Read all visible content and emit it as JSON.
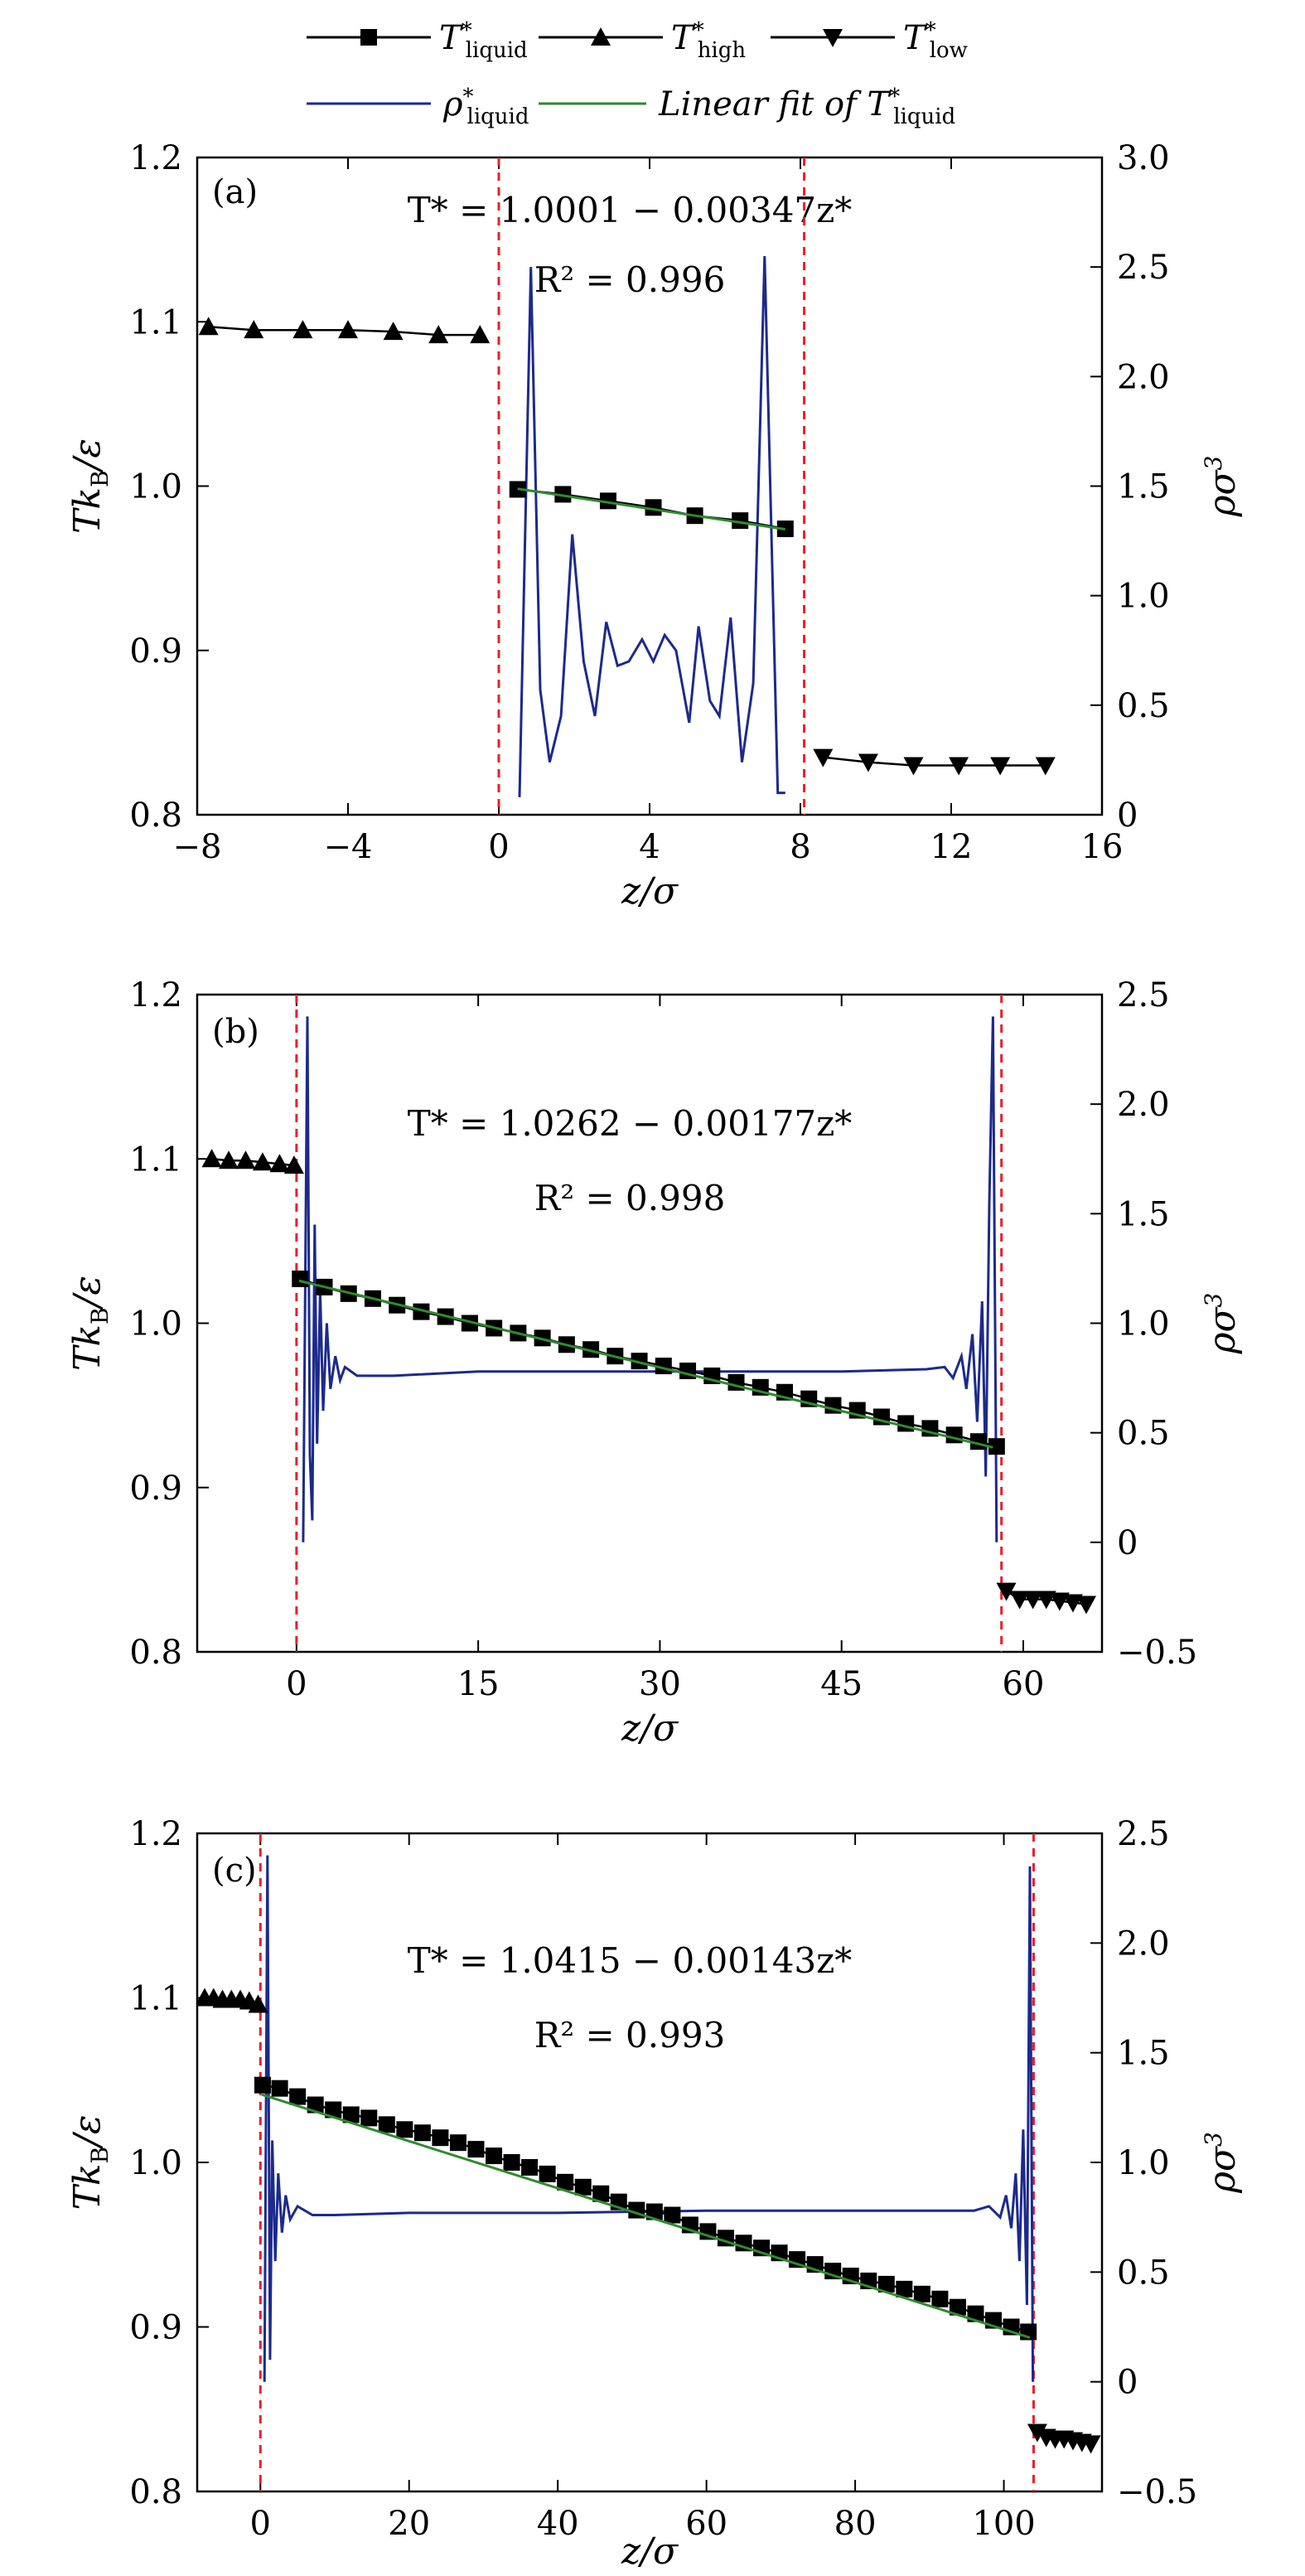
{
  "legend": {
    "items": [
      {
        "label": "T*liquid",
        "kind": "line-square",
        "color": "#000000"
      },
      {
        "label": "T*high",
        "kind": "line-triangle-up",
        "color": "#000000"
      },
      {
        "label": "T*low",
        "kind": "line-triangle-down",
        "color": "#000000"
      },
      {
        "label": "ρ*liquid",
        "kind": "line",
        "color": "#1c2a8c"
      },
      {
        "label": "Linear fit of T*liquid",
        "kind": "line",
        "color": "#2e8b2e"
      }
    ]
  },
  "colors": {
    "temperature": "#000000",
    "density": "#1c2a8c",
    "fit": "#2e8b2e",
    "interface": "#e8202a"
  },
  "chart_data": [
    {
      "type": "line",
      "panel": "(a)",
      "xlabel": "z/σ",
      "ylabel": "Tk_B/ε",
      "y2label": "ρσ³",
      "xlim": [
        -8,
        16
      ],
      "xticks": [
        -8,
        -4,
        0,
        4,
        8,
        12,
        16
      ],
      "xtick_labels": [
        "−8",
        "−4",
        "0",
        "4",
        "8",
        "12",
        "16"
      ],
      "ylim": [
        0.8,
        1.2
      ],
      "yticks": [
        0.8,
        0.9,
        1.0,
        1.1,
        1.2
      ],
      "ytick_labels": [
        "0.8",
        "0.9",
        "1.0",
        "1.1",
        "1.2"
      ],
      "y2lim": [
        0,
        3.0
      ],
      "y2ticks": [
        0,
        0.5,
        1.0,
        1.5,
        2.0,
        2.5,
        3.0
      ],
      "y2tick_labels": [
        "0",
        "0.5",
        "1.0",
        "1.5",
        "2.0",
        "2.5",
        "3.0"
      ],
      "annotation_eq": "T* = 1.0001 − 0.00347z*",
      "annotation_r2": "R² = 0.996",
      "interfaces": [
        0,
        8.1
      ],
      "fit": {
        "intercept": 1.0001,
        "slope": -0.00347,
        "x_range": [
          0.5,
          7.6
        ]
      },
      "series": [
        {
          "name": "T*high",
          "marker": "triangle-up",
          "x": [
            -7.7,
            -6.5,
            -5.2,
            -4.0,
            -2.8,
            -1.6,
            -0.5
          ],
          "y": [
            1.097,
            1.095,
            1.095,
            1.095,
            1.094,
            1.092,
            1.092
          ]
        },
        {
          "name": "T*liquid",
          "marker": "square",
          "x": [
            0.5,
            1.7,
            2.9,
            4.1,
            5.2,
            6.4,
            7.6
          ],
          "y": [
            0.998,
            0.995,
            0.991,
            0.987,
            0.982,
            0.979,
            0.974
          ]
        },
        {
          "name": "T*low",
          "marker": "triangle-down",
          "x": [
            8.6,
            9.8,
            11.0,
            12.2,
            13.3,
            14.5
          ],
          "y": [
            0.835,
            0.832,
            0.83,
            0.83,
            0.83,
            0.83
          ]
        },
        {
          "name": "ρ*liquid",
          "axis": "right",
          "x": [
            0.55,
            0.85,
            1.1,
            1.35,
            1.65,
            1.95,
            2.25,
            2.55,
            2.85,
            3.15,
            3.45,
            3.8,
            4.1,
            4.4,
            4.7,
            5.05,
            5.3,
            5.6,
            5.85,
            6.15,
            6.45,
            6.75,
            7.05,
            7.4,
            7.6
          ],
          "y": [
            0.08,
            2.5,
            0.57,
            0.24,
            0.45,
            1.28,
            0.7,
            0.45,
            0.88,
            0.68,
            0.7,
            0.8,
            0.7,
            0.82,
            0.75,
            0.42,
            0.86,
            0.52,
            0.45,
            0.9,
            0.24,
            0.6,
            2.55,
            0.1,
            0.1
          ]
        }
      ]
    },
    {
      "type": "line",
      "panel": "(b)",
      "xlabel": "z/σ",
      "ylabel": "Tk_B/ε",
      "y2label": "ρσ³",
      "xlim": [
        -8.2,
        66.5
      ],
      "xticks": [
        0,
        15,
        30,
        45,
        60
      ],
      "xtick_labels": [
        "0",
        "15",
        "30",
        "45",
        "60"
      ],
      "ylim": [
        0.8,
        1.2
      ],
      "yticks": [
        0.8,
        0.9,
        1.0,
        1.1,
        1.2
      ],
      "ytick_labels": [
        "0.8",
        "0.9",
        "1.0",
        "1.1",
        "1.2"
      ],
      "y2lim": [
        -0.5,
        2.5
      ],
      "y2ticks": [
        -0.5,
        0,
        0.5,
        1.0,
        1.5,
        2.0,
        2.5
      ],
      "y2tick_labels": [
        "−0.5",
        "0",
        "0.5",
        "1.0",
        "1.5",
        "2.0",
        "2.5"
      ],
      "annotation_eq": "T* = 1.0262 − 0.00177z*",
      "annotation_r2": "R² = 0.998",
      "interfaces": [
        0,
        58.2
      ],
      "fit": {
        "intercept": 1.0262,
        "slope": -0.00177,
        "x_range": [
          0.2,
          57.5
        ]
      },
      "series": [
        {
          "name": "T*high",
          "marker": "triangle-up",
          "x": [
            -7.0,
            -5.6,
            -4.2,
            -2.8,
            -1.4,
            -0.2
          ],
          "y": [
            1.1,
            1.099,
            1.099,
            1.098,
            1.097,
            1.096
          ]
        },
        {
          "name": "T*liquid",
          "marker": "square",
          "x": [
            0.3,
            2.3,
            4.3,
            6.3,
            8.3,
            10.3,
            12.3,
            14.3,
            16.3,
            18.3,
            20.3,
            22.3,
            24.3,
            26.3,
            28.3,
            30.3,
            32.3,
            34.3,
            36.3,
            38.3,
            40.3,
            42.3,
            44.3,
            46.3,
            48.3,
            50.3,
            52.3,
            54.3,
            56.3,
            57.8
          ],
          "y": [
            1.027,
            1.022,
            1.018,
            1.015,
            1.011,
            1.007,
            1.004,
            1.0,
            0.997,
            0.994,
            0.991,
            0.987,
            0.984,
            0.98,
            0.977,
            0.974,
            0.971,
            0.968,
            0.964,
            0.961,
            0.958,
            0.954,
            0.95,
            0.947,
            0.943,
            0.939,
            0.936,
            0.932,
            0.928,
            0.925
          ]
        },
        {
          "name": "T*low",
          "marker": "triangle-down",
          "x": [
            58.6,
            59.7,
            60.8,
            61.9,
            63.0,
            64.1,
            65.2
          ],
          "y": [
            0.837,
            0.832,
            0.832,
            0.832,
            0.831,
            0.83,
            0.829
          ]
        },
        {
          "name": "ρ*liquid",
          "axis": "right",
          "x": [
            0.55,
            0.9,
            1.1,
            1.3,
            1.5,
            1.7,
            1.95,
            2.2,
            2.5,
            2.8,
            3.2,
            3.6,
            4.0,
            5.0,
            8.0,
            15.0,
            25.0,
            35.0,
            45.0,
            52.0,
            53.5,
            54.2,
            54.9,
            55.3,
            55.8,
            56.2,
            56.6,
            56.9,
            57.2,
            57.5,
            57.8
          ],
          "y": [
            0.0,
            2.4,
            0.4,
            0.1,
            1.45,
            0.45,
            1.15,
            0.6,
            1.0,
            0.7,
            0.85,
            0.74,
            0.8,
            0.76,
            0.76,
            0.78,
            0.78,
            0.78,
            0.78,
            0.79,
            0.8,
            0.75,
            0.85,
            0.7,
            0.95,
            0.55,
            1.1,
            0.3,
            1.55,
            2.4,
            0.0
          ]
        }
      ]
    },
    {
      "type": "line",
      "panel": "(c)",
      "xlabel": "z/σ",
      "ylabel": "Tk_B/ε",
      "y2label": "ρσ³",
      "xlim": [
        -8.5,
        113.2
      ],
      "xticks": [
        0,
        20,
        40,
        60,
        80,
        100
      ],
      "xtick_labels": [
        "0",
        "20",
        "40",
        "60",
        "80",
        "100"
      ],
      "ylim": [
        0.8,
        1.2
      ],
      "yticks": [
        0.8,
        0.9,
        1.0,
        1.1,
        1.2
      ],
      "ytick_labels": [
        "0.8",
        "0.9",
        "1.0",
        "1.1",
        "1.2"
      ],
      "y2lim": [
        -0.5,
        2.5
      ],
      "y2ticks": [
        -0.5,
        0,
        0.5,
        1.0,
        1.5,
        2.0,
        2.5
      ],
      "y2tick_labels": [
        "−0.5",
        "0",
        "0.5",
        "1.0",
        "1.5",
        "2.0",
        "2.5"
      ],
      "annotation_eq": "T* = 1.0415 − 0.00143z*",
      "annotation_r2": "R² = 0.993",
      "interfaces": [
        0,
        104
      ],
      "fit": {
        "intercept": 1.0415,
        "slope": -0.00143,
        "x_range": [
          0.2,
          103.5
        ]
      },
      "series": [
        {
          "name": "T*high",
          "marker": "triangle-up",
          "x": [
            -7.5,
            -6.3,
            -5.1,
            -3.9,
            -2.7,
            -1.5,
            -0.3
          ],
          "y": [
            1.1,
            1.1,
            1.099,
            1.099,
            1.099,
            1.098,
            1.096
          ]
        },
        {
          "name": "T*liquid",
          "marker": "square",
          "x": [
            0.3,
            2.6,
            5.0,
            7.4,
            9.8,
            12.2,
            14.6,
            17.0,
            19.4,
            21.8,
            24.2,
            26.6,
            29.0,
            31.4,
            33.8,
            36.2,
            38.6,
            41.0,
            43.4,
            45.8,
            48.2,
            50.6,
            53.0,
            55.4,
            57.8,
            60.2,
            62.6,
            65.0,
            67.4,
            69.8,
            72.2,
            74.6,
            77.0,
            79.4,
            81.8,
            84.2,
            86.6,
            89.0,
            91.4,
            93.8,
            96.2,
            98.6,
            101.0,
            103.3
          ],
          "y": [
            1.047,
            1.045,
            1.04,
            1.035,
            1.032,
            1.029,
            1.027,
            1.023,
            1.02,
            1.018,
            1.015,
            1.012,
            1.008,
            1.004,
            1.0,
            0.997,
            0.993,
            0.988,
            0.985,
            0.981,
            0.976,
            0.971,
            0.97,
            0.968,
            0.962,
            0.958,
            0.954,
            0.951,
            0.948,
            0.945,
            0.941,
            0.938,
            0.934,
            0.931,
            0.928,
            0.926,
            0.923,
            0.92,
            0.917,
            0.912,
            0.908,
            0.904,
            0.9,
            0.897
          ]
        },
        {
          "name": "T*low",
          "marker": "triangle-down",
          "x": [
            104.5,
            105.7,
            106.9,
            108.1,
            109.3,
            110.5,
            111.7
          ],
          "y": [
            0.836,
            0.833,
            0.832,
            0.832,
            0.831,
            0.83,
            0.829
          ]
        },
        {
          "name": "ρ*liquid",
          "axis": "right",
          "x": [
            0.55,
            0.95,
            1.3,
            1.6,
            2.0,
            2.4,
            2.9,
            3.4,
            4.0,
            5.0,
            7.0,
            10.0,
            20.0,
            40.0,
            60.0,
            80.0,
            96.0,
            98.0,
            99.5,
            100.3,
            101.0,
            101.6,
            102.1,
            102.6,
            103.1,
            103.5,
            103.9
          ],
          "y": [
            0.0,
            2.4,
            0.1,
            1.1,
            0.55,
            0.95,
            0.68,
            0.85,
            0.74,
            0.8,
            0.76,
            0.76,
            0.77,
            0.77,
            0.78,
            0.78,
            0.78,
            0.8,
            0.75,
            0.85,
            0.7,
            0.95,
            0.55,
            1.15,
            0.35,
            2.35,
            0.0
          ]
        }
      ]
    }
  ]
}
